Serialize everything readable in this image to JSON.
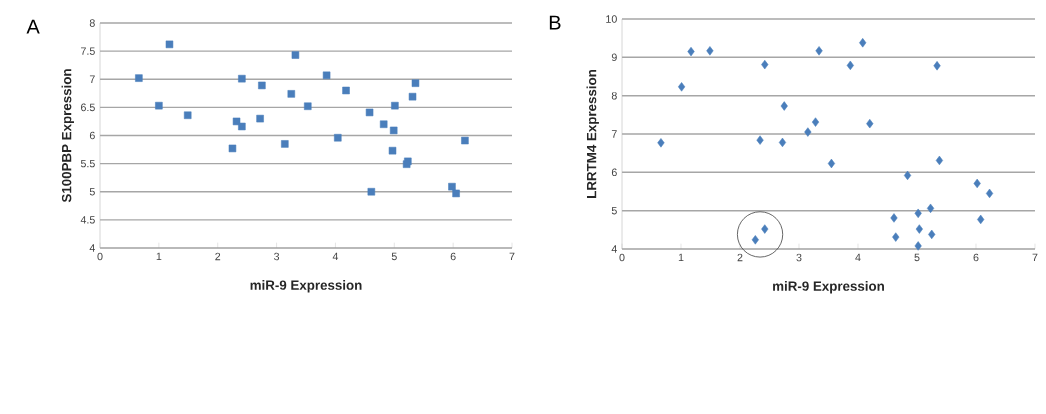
{
  "chart_data": [
    {
      "type": "scatter",
      "title": "A",
      "xlabel": "miR-9 Expression",
      "ylabel": "S100PBP Expression",
      "marker": "square",
      "grid": "y",
      "xlim": [
        0,
        7
      ],
      "xticks": [
        0,
        1,
        2,
        3,
        4,
        5,
        6,
        7
      ],
      "ylim": [
        4,
        8
      ],
      "yticks": [
        4,
        4.5,
        5,
        5.5,
        6,
        6.5,
        7,
        7.5,
        8
      ],
      "series": [
        {
          "color": "#4a7ebb",
          "x": [
            0.66,
            1.18,
            1.0,
            1.49,
            2.32,
            2.41,
            2.41,
            2.25,
            2.75,
            2.72,
            3.32,
            3.25,
            3.53,
            3.14,
            3.85,
            4.18,
            4.04,
            4.58,
            4.61,
            4.82,
            5.01,
            4.99,
            4.97,
            5.23,
            5.21,
            5.31,
            5.36,
            5.98,
            6.05,
            6.2
          ],
          "values": [
            7.02,
            7.62,
            6.53,
            6.36,
            6.25,
            6.16,
            7.01,
            5.77,
            6.89,
            6.3,
            7.43,
            6.74,
            6.52,
            5.85,
            7.07,
            6.8,
            5.96,
            6.41,
            5.0,
            6.2,
            6.53,
            6.09,
            5.73,
            5.54,
            5.49,
            6.69,
            6.93,
            5.09,
            4.97,
            5.91
          ]
        }
      ]
    },
    {
      "type": "scatter",
      "title": "B",
      "xlabel": "miR-9 Expression",
      "ylabel": "LRRTM4 Expression",
      "marker": "diamond",
      "grid": "y",
      "xlim": [
        0,
        7
      ],
      "xticks": [
        0,
        1,
        2,
        3,
        4,
        5,
        6,
        7
      ],
      "ylim": [
        4,
        10
      ],
      "yticks": [
        4,
        5,
        6,
        7,
        8,
        9,
        10
      ],
      "series": [
        {
          "color": "#4a7ebb",
          "x": [
            0.66,
            1.01,
            1.17,
            1.49,
            2.42,
            2.75,
            2.34,
            2.72,
            2.26,
            2.42,
            3.34,
            3.28,
            3.15,
            3.55,
            4.08,
            3.87,
            4.2,
            5.34,
            5.38,
            4.84,
            6.02,
            6.23,
            6.08,
            5.23,
            5.02,
            4.61,
            4.64,
            5.04,
            5.25,
            5.02
          ],
          "values": [
            6.77,
            8.23,
            9.15,
            9.17,
            8.81,
            7.73,
            6.84,
            6.78,
            4.24,
            4.52,
            9.17,
            7.31,
            7.05,
            6.23,
            9.38,
            8.79,
            7.27,
            8.78,
            6.31,
            5.92,
            5.71,
            5.45,
            4.77,
            5.06,
            4.93,
            4.81,
            4.31,
            4.52,
            4.38,
            4.08
          ]
        }
      ]
    }
  ]
}
